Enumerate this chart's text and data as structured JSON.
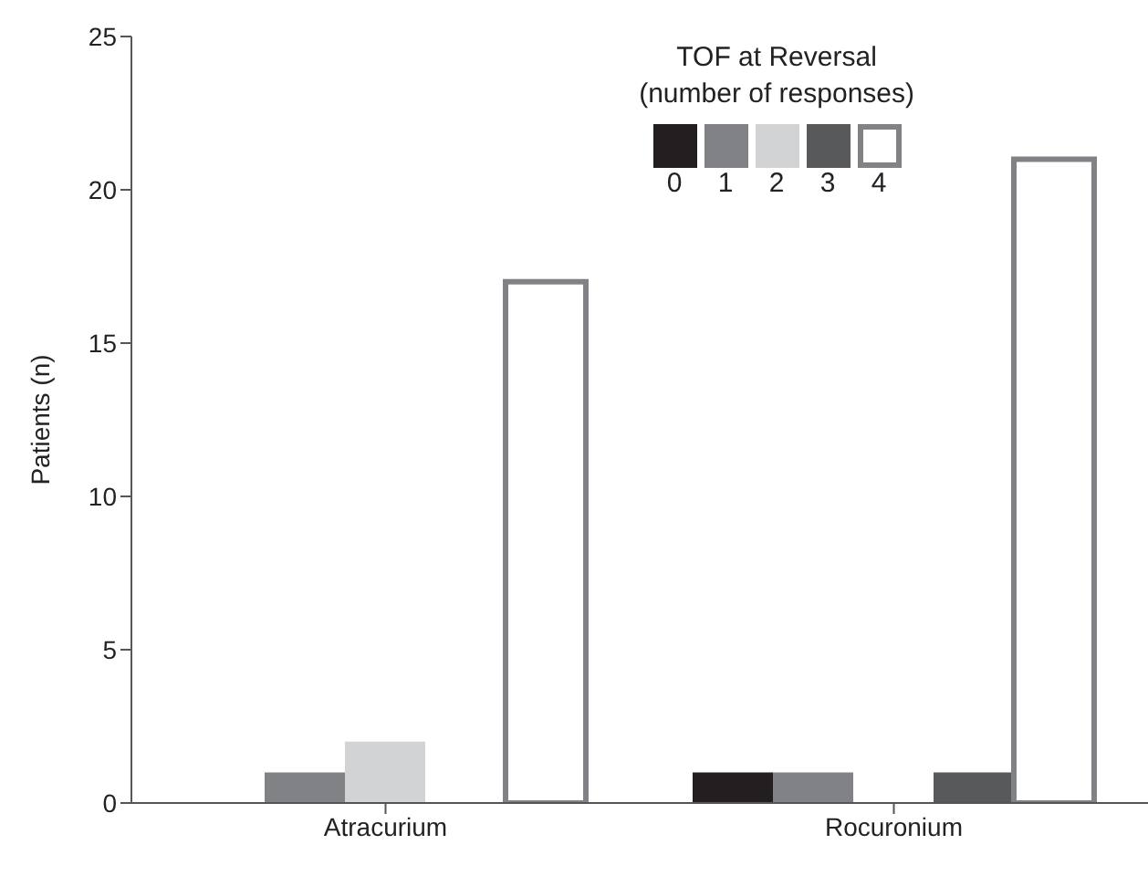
{
  "chart_data": {
    "type": "bar",
    "categories": [
      "Atracurium",
      "Rocuronium"
    ],
    "ylabel": "Patients (n)",
    "ylim": [
      0,
      25
    ],
    "yticks": [
      0,
      5,
      10,
      15,
      20,
      25
    ],
    "legend": "top right",
    "legend_title": "TOF at Reversal\n(number of responses)",
    "series": [
      {
        "name": "0",
        "color": "#231f20",
        "values": [
          0,
          1
        ]
      },
      {
        "name": "1",
        "color": "#808285",
        "values": [
          1,
          1
        ]
      },
      {
        "name": "2",
        "color": "#d1d3d4",
        "values": [
          2,
          0
        ]
      },
      {
        "name": "3",
        "color": "#58595b",
        "values": [
          0,
          1
        ]
      },
      {
        "name": "4",
        "color": "#ffffff",
        "values": [
          17,
          21
        ]
      }
    ]
  }
}
